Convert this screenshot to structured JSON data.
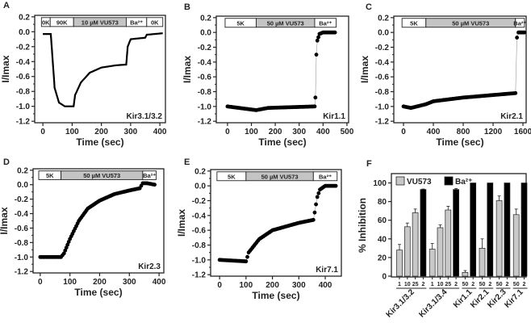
{
  "chart_data": [
    {
      "panel": "A",
      "type": "line",
      "label": "Kir3.1/3.2",
      "xlabel": "Time (sec)",
      "ylabel": "I/Imax",
      "xlim": [
        -28,
        419
      ],
      "ylim": [
        -1.22,
        0.22
      ],
      "xticks": [
        0,
        100,
        200,
        300,
        400
      ],
      "yticks": [
        0.2,
        0.0,
        -0.2,
        -0.4,
        -0.6,
        -0.8,
        -1.0,
        -1.2
      ],
      "stimulus": [
        {
          "label": "0K",
          "from": -5,
          "to": 25,
          "shaded": false
        },
        {
          "label": "90K",
          "from": 25,
          "to": 105,
          "shaded": false
        },
        {
          "label": "10 µM VU573",
          "from": 105,
          "to": 285,
          "shaded": true
        },
        {
          "label": "Ba²⁺",
          "from": 285,
          "to": 355,
          "shaded": false
        },
        {
          "label": "0K",
          "from": 355,
          "to": 410,
          "shaded": false
        }
      ],
      "points": [
        [
          0,
          -0.03
        ],
        [
          27,
          -0.03
        ],
        [
          32,
          -0.3
        ],
        [
          40,
          -0.75
        ],
        [
          55,
          -0.95
        ],
        [
          75,
          -1.0
        ],
        [
          105,
          -1.0
        ],
        [
          110,
          -0.85
        ],
        [
          130,
          -0.68
        ],
        [
          160,
          -0.55
        ],
        [
          200,
          -0.48
        ],
        [
          250,
          -0.45
        ],
        [
          285,
          -0.44
        ],
        [
          290,
          -0.2
        ],
        [
          300,
          -0.1
        ],
        [
          350,
          -0.08
        ],
        [
          355,
          -0.04
        ],
        [
          410,
          -0.02
        ]
      ]
    },
    {
      "panel": "B",
      "type": "scatter",
      "label": "Kir1.1",
      "xlabel": "Time (sec)",
      "ylabel": "I/Imax",
      "xlim": [
        -47,
        507
      ],
      "ylim": [
        -1.22,
        0.22
      ],
      "xticks": [
        0,
        100,
        200,
        300,
        400,
        500
      ],
      "yticks": [
        0.2,
        0.0,
        -0.2,
        -0.4,
        -0.6,
        -0.8,
        -1.0,
        -1.2
      ],
      "stimulus": [
        {
          "label": "5K",
          "from": -10,
          "to": 120,
          "shaded": false
        },
        {
          "label": "50 µM VU573",
          "from": 120,
          "to": 365,
          "shaded": true
        },
        {
          "label": "Ba²⁺",
          "from": 365,
          "to": 455,
          "shaded": false
        }
      ],
      "points": [
        [
          0,
          -1.0
        ],
        [
          120,
          -1.05
        ],
        [
          170,
          -1.02
        ],
        [
          365,
          -1.0
        ],
        [
          368,
          -0.88
        ],
        [
          372,
          -0.3
        ],
        [
          376,
          -0.11
        ],
        [
          385,
          -0.02
        ],
        [
          400,
          0
        ],
        [
          450,
          0
        ]
      ]
    },
    {
      "panel": "C",
      "type": "scatter",
      "label": "Kir2.1",
      "xlabel": "Time (sec)",
      "ylabel": "I/Imax",
      "xlim": [
        -130,
        1643
      ],
      "ylim": [
        -1.22,
        0.22
      ],
      "xticks": [
        0,
        400,
        800,
        1200,
        1600
      ],
      "yticks": [
        0.2,
        0.0,
        -0.2,
        -0.4,
        -0.6,
        -0.8,
        -1.0,
        -1.2
      ],
      "stimulus": [
        {
          "label": "5K",
          "from": -20,
          "to": 300,
          "shaded": false
        },
        {
          "label": "50 µM VU573",
          "from": 300,
          "to": 1500,
          "shaded": true
        },
        {
          "label": "Ba²⁺",
          "from": 1500,
          "to": 1620,
          "shaded": false
        }
      ],
      "points": [
        [
          0,
          -1.0
        ],
        [
          100,
          -1.02
        ],
        [
          300,
          -0.97
        ],
        [
          400,
          -0.93
        ],
        [
          800,
          -0.88
        ],
        [
          1500,
          -0.82
        ],
        [
          1520,
          -0.07
        ],
        [
          1540,
          0
        ],
        [
          1620,
          0
        ]
      ]
    },
    {
      "panel": "D",
      "type": "scatter",
      "label": "Kir2.3",
      "xlabel": "Time (sec)",
      "ylabel": "I/Imax",
      "xlim": [
        -24,
        416
      ],
      "ylim": [
        -1.22,
        0.22
      ],
      "xticks": [
        0,
        100,
        200,
        300,
        400
      ],
      "yticks": [
        0.2,
        0.0,
        -0.2,
        -0.4,
        -0.6,
        -0.8,
        -1.0,
        -1.2
      ],
      "stimulus": [
        {
          "label": "5K",
          "from": -5,
          "to": 70,
          "shaded": false
        },
        {
          "label": "50 µM VU573",
          "from": 70,
          "to": 345,
          "shaded": true
        },
        {
          "label": "Ba²⁺",
          "from": 345,
          "to": 390,
          "shaded": false
        }
      ],
      "points": [
        [
          0,
          -1.0
        ],
        [
          70,
          -1.0
        ],
        [
          80,
          -0.95
        ],
        [
          100,
          -0.75
        ],
        [
          130,
          -0.5
        ],
        [
          160,
          -0.33
        ],
        [
          200,
          -0.22
        ],
        [
          250,
          -0.13
        ],
        [
          300,
          -0.08
        ],
        [
          335,
          -0.05
        ],
        [
          345,
          0.02
        ],
        [
          360,
          0.02
        ],
        [
          385,
          0
        ]
      ]
    },
    {
      "panel": "E",
      "type": "scatter",
      "label": "Kir7.1",
      "xlabel": "Time (sec)",
      "ylabel": "I/Imax",
      "xlim": [
        -34,
        461
      ],
      "ylim": [
        -1.22,
        0.22
      ],
      "xticks": [
        0,
        100,
        200,
        300,
        400
      ],
      "yticks": [
        0.2,
        0.0,
        -0.2,
        -0.4,
        -0.6,
        -0.8,
        -1.0,
        -1.2
      ],
      "stimulus": [
        {
          "label": "5K",
          "from": -10,
          "to": 100,
          "shaded": false
        },
        {
          "label": "50 µM VU573",
          "from": 100,
          "to": 355,
          "shaded": true
        },
        {
          "label": "Ba²⁺",
          "from": 355,
          "to": 445,
          "shaded": false
        }
      ],
      "points": [
        [
          0,
          -1.0
        ],
        [
          100,
          -1.02
        ],
        [
          110,
          -0.9
        ],
        [
          150,
          -0.72
        ],
        [
          200,
          -0.6
        ],
        [
          300,
          -0.5
        ],
        [
          355,
          -0.46
        ],
        [
          360,
          -0.36
        ],
        [
          365,
          -0.25
        ],
        [
          370,
          -0.15
        ],
        [
          380,
          -0.05
        ],
        [
          400,
          0
        ],
        [
          440,
          0
        ]
      ]
    },
    {
      "panel": "F",
      "type": "bar",
      "ylabel": "% Inhibition",
      "ylim": [
        0,
        110
      ],
      "yticks": [
        0,
        20,
        40,
        60,
        80,
        100
      ],
      "legend": [
        {
          "label": "VU573",
          "color": "#c8c8c8"
        },
        {
          "label": "Ba²⁺",
          "color": "#000000"
        }
      ],
      "legend_position": "top-left",
      "groups": [
        {
          "name": "Kir3.1/3.2",
          "bars": [
            {
              "conc": "1",
              "value": 28,
              "err": 6,
              "agent": "VU573"
            },
            {
              "conc": "10",
              "value": 53,
              "err": 4,
              "agent": "VU573"
            },
            {
              "conc": "25",
              "value": 68,
              "err": 4,
              "agent": "VU573"
            },
            {
              "conc": "2",
              "value": 93,
              "err": 0.5,
              "agent": "Ba"
            }
          ]
        },
        {
          "name": "Kir3.1/3.4",
          "bars": [
            {
              "conc": "1",
              "value": 29,
              "err": 6,
              "agent": "VU573"
            },
            {
              "conc": "10",
              "value": 52,
              "err": 3,
              "agent": "VU573"
            },
            {
              "conc": "25",
              "value": 71,
              "err": 4,
              "agent": "VU573"
            },
            {
              "conc": "2",
              "value": 93,
              "err": 1,
              "agent": "Ba"
            }
          ]
        },
        {
          "name": "Kir1.1",
          "bars": [
            {
              "conc": "50",
              "value": 4,
              "err": 2,
              "agent": "VU573"
            },
            {
              "conc": "2",
              "value": 100,
              "err": 0,
              "agent": "Ba"
            }
          ]
        },
        {
          "name": "Kir2.1",
          "bars": [
            {
              "conc": "50",
              "value": 30,
              "err": 10,
              "agent": "VU573"
            },
            {
              "conc": "2",
              "value": 100,
              "err": 0,
              "agent": "Ba"
            }
          ]
        },
        {
          "name": "Kir2.3",
          "bars": [
            {
              "conc": "50",
              "value": 81,
              "err": 5,
              "agent": "VU573"
            },
            {
              "conc": "2",
              "value": 100,
              "err": 0,
              "agent": "Ba"
            }
          ]
        },
        {
          "name": "Kir7.1",
          "bars": [
            {
              "conc": "50",
              "value": 66,
              "err": 6,
              "agent": "VU573"
            },
            {
              "conc": "2",
              "value": 100,
              "err": 0,
              "agent": "Ba"
            }
          ]
        }
      ]
    }
  ]
}
